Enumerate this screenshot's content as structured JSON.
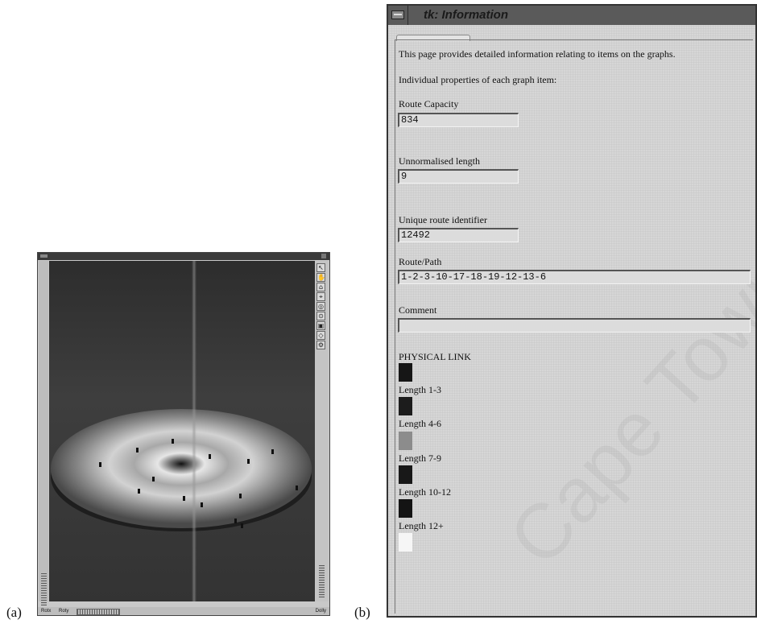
{
  "captions": {
    "a": "(a)",
    "b": "(b)"
  },
  "viewer": {
    "bottom_labels": {
      "rotx": "Rotx",
      "roty": "Roty",
      "dolly": "Dolly"
    },
    "right_toolbar": [
      "pointer-icon",
      "rotate-hand-icon",
      "home-icon",
      "set-home-icon",
      "view-all-icon",
      "seek-icon",
      "camera-icon",
      "projection-icon"
    ]
  },
  "info": {
    "title": "tk: Information",
    "intro": "This page provides detailed information relating to items on the graphs.",
    "subheading": "Individual properties of each graph item:",
    "fields": [
      {
        "label": "Route Capacity",
        "value": "834"
      },
      {
        "label": "Unnormalised length",
        "value": "9"
      },
      {
        "label": "Unique route identifier",
        "value": "12492"
      },
      {
        "label": "Route/Path",
        "value": "1-2-3-10-17-18-19-12-13-6"
      },
      {
        "label": "Comment",
        "value": ""
      }
    ],
    "physical_link": {
      "heading": "PHYSICAL LINK",
      "legend": [
        {
          "label": "Length 1-3",
          "color": "#161616"
        },
        {
          "label": "Length 4-6",
          "color": "#1c1c1c"
        },
        {
          "label": "Length 7-9",
          "color": "#8c8c8c"
        },
        {
          "label": "Length 10-12",
          "color": "#181818"
        },
        {
          "label": "Length 12+",
          "color": "#141414"
        }
      ],
      "last_swatch_color": "#f6f6f6"
    }
  }
}
